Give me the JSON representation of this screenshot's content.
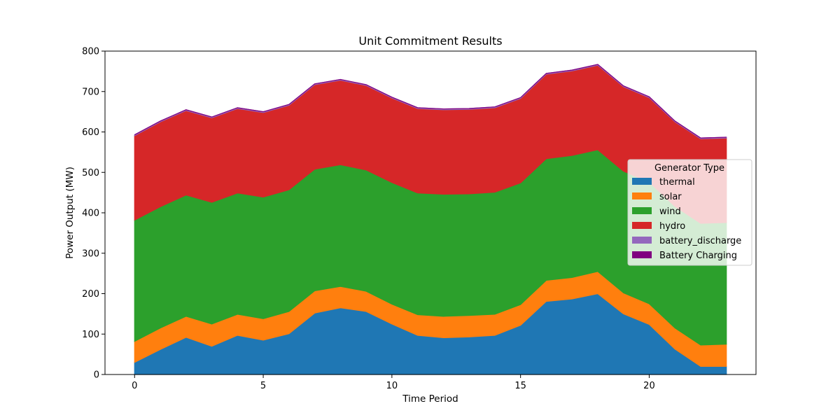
{
  "chart_data": {
    "type": "area",
    "stacked": true,
    "title": "Unit Commitment Results",
    "xlabel": "Time Period",
    "ylabel": "Power Output (MW)",
    "x": [
      0,
      1,
      2,
      3,
      4,
      5,
      6,
      7,
      8,
      9,
      10,
      11,
      12,
      13,
      14,
      15,
      16,
      17,
      18,
      19,
      20,
      21,
      22,
      23
    ],
    "xlim": [
      -1.15,
      24.15
    ],
    "ylim": [
      0,
      800
    ],
    "xticks": [
      0,
      5,
      10,
      15,
      20
    ],
    "yticks": [
      0,
      100,
      200,
      300,
      400,
      500,
      600,
      700,
      800
    ],
    "grid": false,
    "series": [
      {
        "name": "thermal",
        "color": "#1f77b4",
        "values": [
          30,
          62,
          92,
          70,
          97,
          85,
          101,
          152,
          165,
          156,
          125,
          97,
          91,
          93,
          97,
          122,
          181,
          187,
          200,
          150,
          124,
          63,
          20,
          20
        ]
      },
      {
        "name": "solar",
        "color": "#ff7f0e",
        "values": [
          52,
          53,
          52,
          55,
          52,
          53,
          55,
          55,
          53,
          50,
          49,
          51,
          53,
          53,
          52,
          51,
          52,
          53,
          55,
          52,
          51,
          52,
          53,
          55
        ]
      },
      {
        "name": "wind",
        "color": "#2ca02c",
        "values": [
          300,
          300,
          300,
          301,
          300,
          301,
          301,
          301,
          301,
          300,
          301,
          301,
          302,
          301,
          302,
          301,
          301,
          302,
          301,
          301,
          301,
          301,
          301,
          301
        ]
      },
      {
        "name": "hydro",
        "color": "#d62728",
        "values": [
          209,
          210,
          209,
          209,
          209,
          209,
          209,
          209,
          209,
          209,
          209,
          209,
          209,
          209,
          209,
          209,
          209,
          209,
          209,
          209,
          209,
          209,
          209,
          209
        ]
      },
      {
        "name": "battery_discharge",
        "color": "#9467bd",
        "values": [
          2,
          2,
          2,
          2,
          2,
          2,
          2,
          2,
          2,
          2,
          2,
          2,
          2,
          2,
          2,
          2,
          2,
          2,
          2,
          2,
          2,
          2,
          2,
          2
        ]
      },
      {
        "name": "Battery Charging",
        "color": "#800080",
        "values": [
          0,
          0,
          0,
          0,
          0,
          0,
          0,
          0,
          0,
          0,
          0,
          0,
          0,
          0,
          0,
          0,
          0,
          0,
          0,
          0,
          0,
          0,
          0,
          0
        ]
      }
    ],
    "legend": {
      "title": "Generator Type",
      "placement": "center-right"
    }
  }
}
